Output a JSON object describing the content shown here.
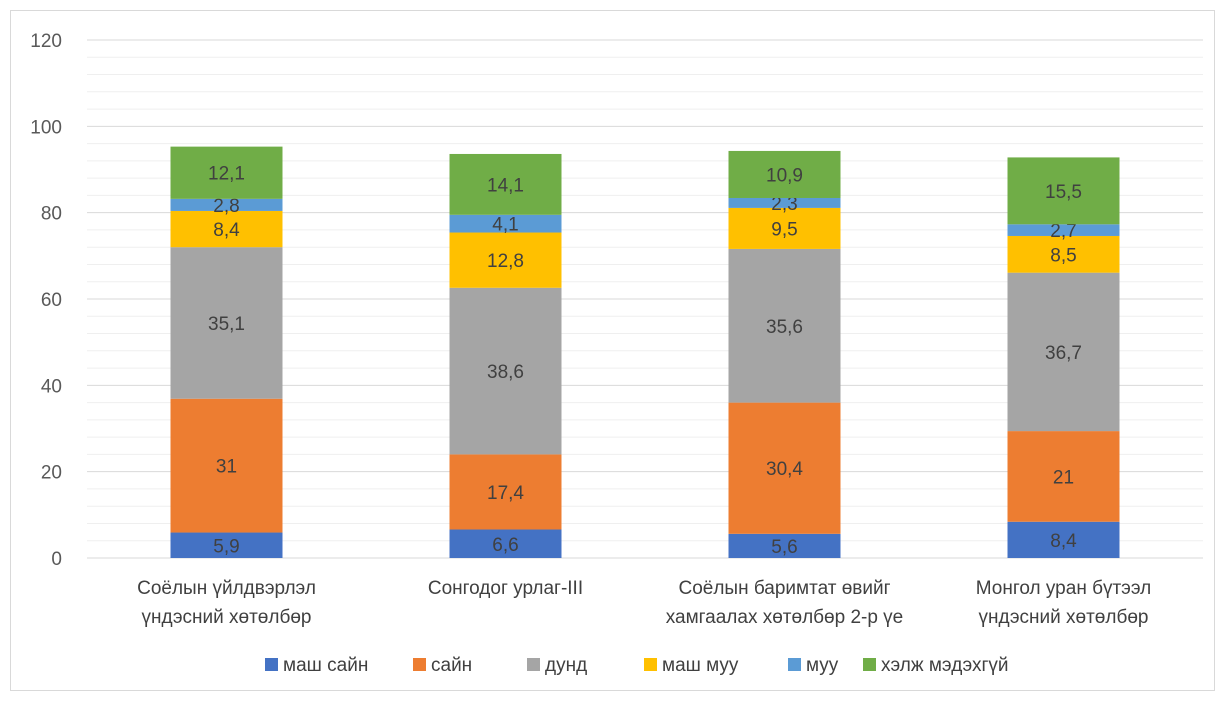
{
  "chart_data": {
    "type": "bar",
    "stacked": true,
    "categories": [
      [
        "Соёлын үйлдвэрлэл",
        "үндэсний хөтөлбөр"
      ],
      [
        "Сонгодог урлаг-III"
      ],
      [
        "Соёлын баримтат өвийг",
        "хамгаалах хөтөлбөр 2-р үе"
      ],
      [
        "Монгол уран бүтээл",
        "үндэсний хөтөлбөр"
      ]
    ],
    "series": [
      {
        "name": "маш сайн",
        "color": "#4472C4",
        "values": [
          5.9,
          6.6,
          5.6,
          8.4
        ],
        "labels": [
          "5,9",
          "6,6",
          "5,6",
          "8,4"
        ]
      },
      {
        "name": "сайн",
        "color": "#ED7D31",
        "values": [
          31,
          17.4,
          30.4,
          21
        ],
        "labels": [
          "31",
          "17,4",
          "30,4",
          "21"
        ]
      },
      {
        "name": "дунд",
        "color": "#A5A5A5",
        "values": [
          35.1,
          38.6,
          35.6,
          36.7
        ],
        "labels": [
          "35,1",
          "38,6",
          "35,6",
          "36,7"
        ]
      },
      {
        "name": "маш муу",
        "color": "#FFC000",
        "values": [
          8.4,
          12.8,
          9.5,
          8.5
        ],
        "labels": [
          "8,4",
          "12,8",
          "9,5",
          "8,5"
        ]
      },
      {
        "name": "муу",
        "color": "#5B9BD5",
        "values": [
          2.8,
          4.1,
          2.3,
          2.7
        ],
        "labels": [
          "2,8",
          "4,1",
          "2,3",
          "2,7"
        ]
      },
      {
        "name": "хэлж мэдэхгүй",
        "color": "#70AD47",
        "values": [
          12.1,
          14.1,
          10.9,
          15.5
        ],
        "labels": [
          "12,1",
          "14,1",
          "10,9",
          "15,5"
        ]
      }
    ],
    "ylim": [
      0,
      120
    ],
    "yticks": [
      "0",
      "20",
      "40",
      "60",
      "80",
      "100",
      "120"
    ],
    "grid": true,
    "legend": "bottom"
  }
}
